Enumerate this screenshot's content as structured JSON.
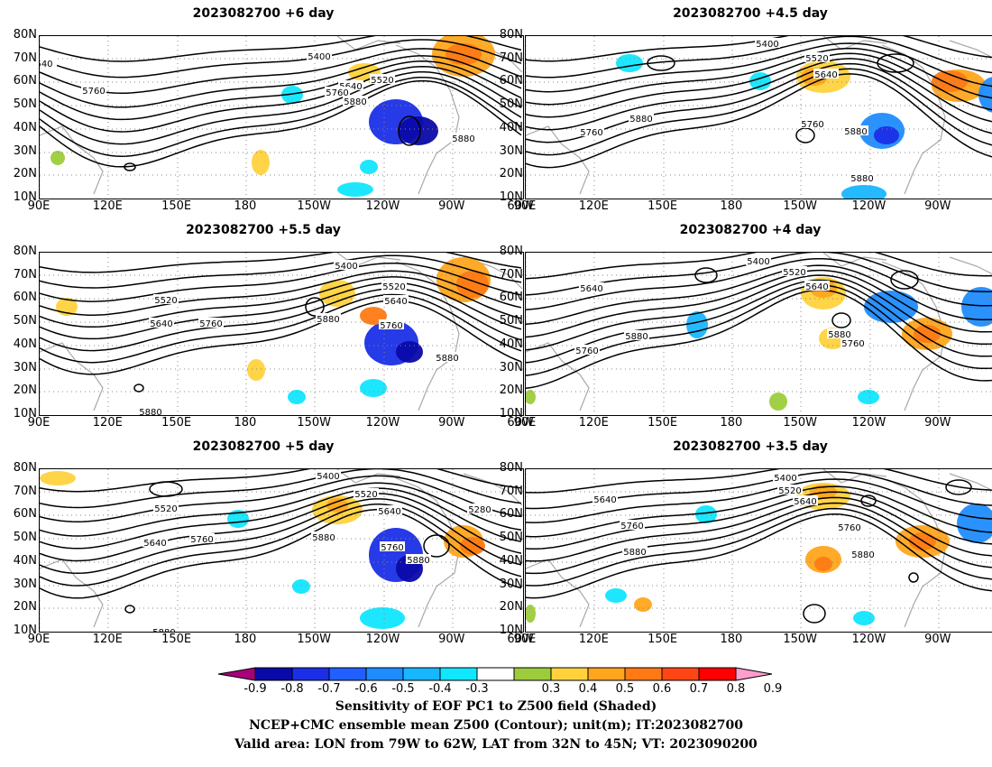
{
  "panels": [
    {
      "title": "2023082700 +6 day"
    },
    {
      "title": "2023082700 +4.5 day"
    },
    {
      "title": "2023082700 +5.5 day"
    },
    {
      "title": "2023082700 +4 day"
    },
    {
      "title": "2023082700 +5 day"
    },
    {
      "title": "2023082700 +3.5 day"
    }
  ],
  "lat_labels": [
    "80N",
    "70N",
    "60N",
    "50N",
    "40N",
    "30N",
    "20N",
    "10N"
  ],
  "lon_labels": [
    "90E",
    "120E",
    "150E",
    "180",
    "150W",
    "120W",
    "90W",
    "60W"
  ],
  "contour_labels": {
    "p0": [
      "5400",
      "5520",
      "5640",
      "5760",
      "5880",
      "5760",
      "5880",
      "540"
    ],
    "p1": [
      "5400",
      "5520",
      "5640",
      "5760",
      "5880",
      "5880",
      "5760",
      "5880"
    ],
    "p2": [
      "5400",
      "5520",
      "5640",
      "5760",
      "5880",
      "5520",
      "5640",
      "5760",
      "5880",
      "5880"
    ],
    "p3": [
      "5400",
      "5520",
      "5640",
      "5640",
      "5760",
      "5880",
      "5760",
      "5880"
    ],
    "p4": [
      "5400",
      "5520",
      "5640",
      "5760",
      "5880",
      "5520",
      "5640",
      "5760",
      "5880",
      "5280",
      "5880"
    ],
    "p5": [
      "5400",
      "5520",
      "5640",
      "5640",
      "5760",
      "5880",
      "5760",
      "5880"
    ]
  },
  "colorbar": {
    "ticks": [
      "-0.9",
      "-0.8",
      "-0.7",
      "-0.6",
      "-0.5",
      "-0.4",
      "-0.3",
      "0.3",
      "0.4",
      "0.5",
      "0.6",
      "0.7",
      "0.8",
      "0.9"
    ],
    "colors": [
      "#0a0aa8",
      "#1a2fe6",
      "#2060ff",
      "#1e8cff",
      "#18b6ff",
      "#10e6ff",
      "#ffffff",
      "#9ccc3c",
      "#ffd23c",
      "#ffa51e",
      "#ff7a14",
      "#ff4614",
      "#ff0000"
    ],
    "under_color": "#a8007a",
    "over_color": "#ff9ecc"
  },
  "captions": {
    "line1": "Sensitivity of EOF PC1 to Z500 field (Shaded)",
    "line2": "NCEP+CMC ensemble mean Z500 (Contour); unit(m); IT:2023082700",
    "line3": "Valid area: LON from 79W to 62W, LAT from 32N to 45N; VT: 2023090200"
  }
}
